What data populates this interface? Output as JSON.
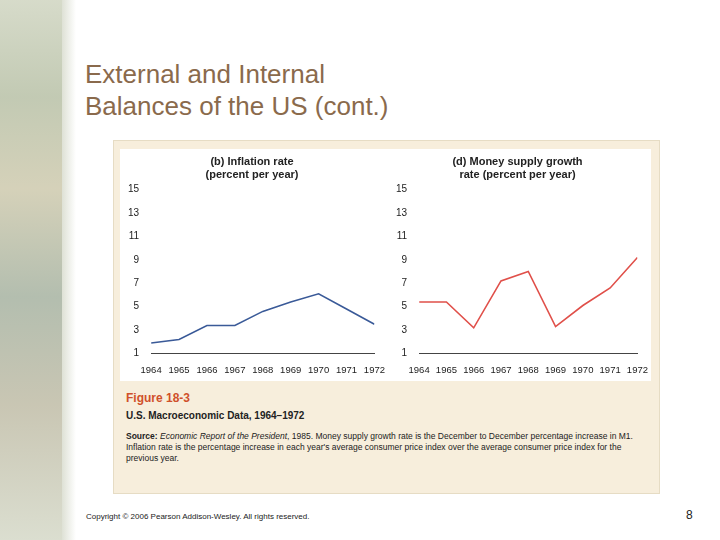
{
  "slide": {
    "title": [
      "External and Internal",
      "Balances of the US (cont.)"
    ],
    "figure_number": "Figure 18-3",
    "figure_title": "U.S. Macroeconomic Data, 1964–1972",
    "source": [
      {
        "text": "Source: ",
        "style": "bold"
      },
      {
        "text": "Economic Report of the President",
        "style": "italic"
      },
      {
        "text": ", 1985. Money supply growth rate is the December to December percentage increase in M1. Inflation rate is the percentage increase in each year's average consumer price index over the average consumer price index for the previous year.",
        "style": "normal"
      }
    ],
    "copyright": "Copyright © 2006 Pearson Addison-Wesley. All rights reserved.",
    "page": "8"
  },
  "chart_data": [
    {
      "type": "line",
      "title": [
        "(b) Inflation rate",
        "(percent per year)"
      ],
      "categories": [
        "1964",
        "1965",
        "1966",
        "1967",
        "1968",
        "1969",
        "1970",
        "1971",
        "1972"
      ],
      "values": [
        1.9,
        2.2,
        3.4,
        3.4,
        4.6,
        5.4,
        6.1,
        4.8,
        3.5
      ],
      "color": "#3a5a98",
      "marker": "none",
      "line_style": "solid",
      "ylim": [
        1,
        15
      ],
      "yticks": [
        1,
        3,
        5,
        7,
        9,
        11,
        13,
        15
      ],
      "grid": false
    },
    {
      "type": "line",
      "title": [
        "(d) Money supply growth",
        "rate (percent per year)"
      ],
      "categories": [
        "1964",
        "1965",
        "1966",
        "1967",
        "1968",
        "1969",
        "1970",
        "1971",
        "1972"
      ],
      "values": [
        5.4,
        5.4,
        3.2,
        7.2,
        8.0,
        3.3,
        5.1,
        6.6,
        9.2
      ],
      "color": "#e0504a",
      "marker": "none",
      "line_style": "solid",
      "ylim": [
        1,
        15
      ],
      "yticks": [
        1,
        3,
        5,
        7,
        9,
        11,
        13,
        15
      ],
      "grid": false
    }
  ]
}
